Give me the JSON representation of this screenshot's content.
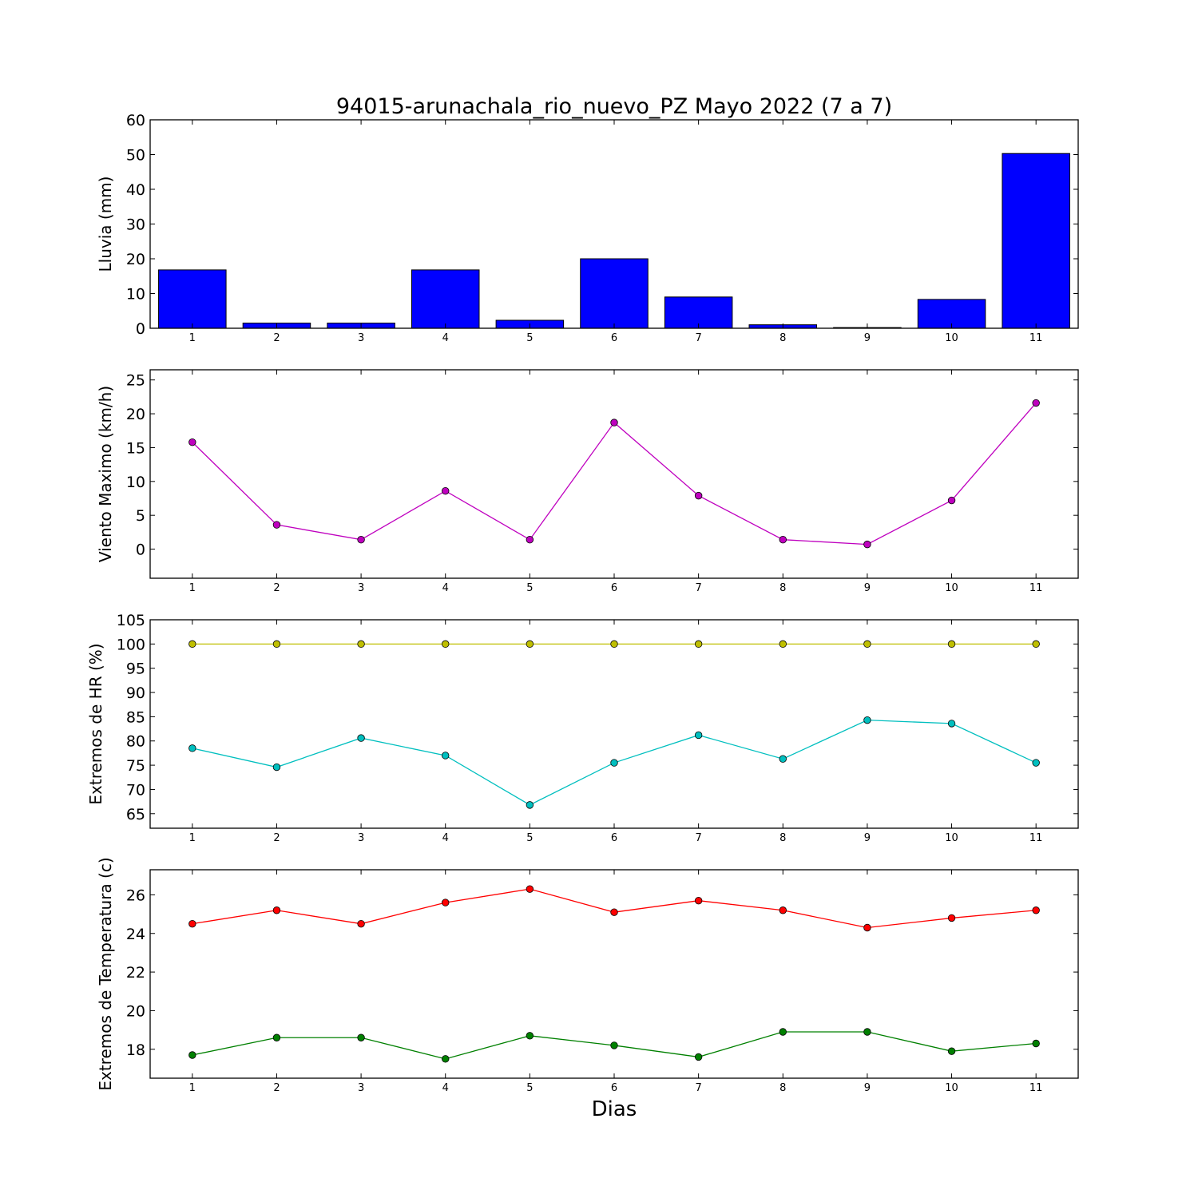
{
  "chart_data": {
    "title": "94015-arunachala_rio_nuevo_PZ Mayo 2022  (7 a 7)",
    "xlabel": "Dias",
    "x": [
      1,
      2,
      3,
      4,
      5,
      6,
      7,
      8,
      9,
      10,
      11
    ],
    "xlim": [
      0.5,
      11.5
    ],
    "panels": [
      {
        "type": "bar",
        "ylabel": "Lluvia (mm)",
        "ylim": [
          0,
          60
        ],
        "yticks": [
          0,
          10,
          20,
          30,
          40,
          50,
          60
        ],
        "series": [
          {
            "values": [
              16.8,
              1.5,
              1.5,
              16.8,
              2.3,
              20.0,
              9.0,
              1.0,
              0.2,
              8.3,
              50.3
            ],
            "color": "#0000ff"
          }
        ]
      },
      {
        "type": "line",
        "ylabel": "Viento Maximo (km/h)",
        "ylim": [
          -4.3,
          26.5
        ],
        "yticks": [
          0,
          5,
          10,
          15,
          20,
          25
        ],
        "series": [
          {
            "values": [
              15.8,
              3.6,
              1.4,
              8.6,
              1.4,
              18.7,
              7.9,
              1.4,
              0.7,
              7.2,
              21.6
            ],
            "color": "#bf00bf"
          }
        ]
      },
      {
        "type": "line",
        "ylabel": "Extremos de HR (%)",
        "ylim": [
          62,
          105
        ],
        "yticks": [
          65,
          70,
          75,
          80,
          85,
          90,
          95,
          100,
          105
        ],
        "series": [
          {
            "values": [
              100,
              100,
              100,
              100,
              100,
              100,
              100,
              100,
              100,
              100,
              100
            ],
            "color": "#bfbf00"
          },
          {
            "values": [
              78.5,
              74.6,
              80.6,
              77.0,
              66.8,
              75.5,
              81.2,
              76.3,
              84.3,
              83.6,
              75.5
            ],
            "color": "#00bfbf"
          }
        ]
      },
      {
        "type": "line",
        "ylabel": "Extremos de Temperatura (c)",
        "ylim": [
          16.5,
          27.3
        ],
        "yticks": [
          18,
          20,
          22,
          24,
          26
        ],
        "series": [
          {
            "values": [
              24.5,
              25.2,
              24.5,
              25.6,
              26.3,
              25.1,
              25.7,
              25.2,
              24.3,
              24.8,
              25.2
            ],
            "color": "#ff0000"
          },
          {
            "values": [
              17.7,
              18.6,
              18.6,
              17.5,
              18.7,
              18.2,
              17.6,
              18.9,
              18.9,
              17.9,
              18.3
            ],
            "color": "#008000"
          }
        ]
      }
    ]
  }
}
